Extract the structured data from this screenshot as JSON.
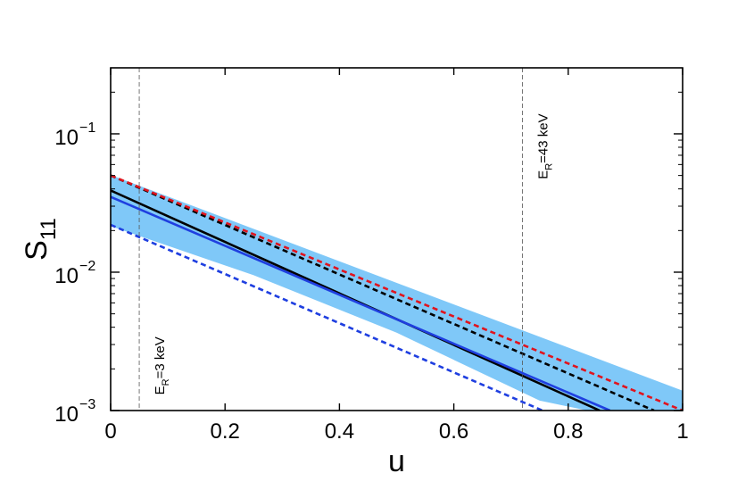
{
  "chart_data": {
    "type": "line",
    "xlabel": "u",
    "ylabel_main": "S",
    "ylabel_sub": "11",
    "xlim": [
      0,
      1
    ],
    "ylim": [
      0.001,
      0.3
    ],
    "yscale": "log",
    "x_ticks": [
      {
        "value": 0,
        "label": "0"
      },
      {
        "value": 0.2,
        "label": "0.2"
      },
      {
        "value": 0.4,
        "label": "0.4"
      },
      {
        "value": 0.6,
        "label": "0.6"
      },
      {
        "value": 0.8,
        "label": "0.8"
      },
      {
        "value": 1,
        "label": "1"
      }
    ],
    "y_ticks": [
      {
        "value": 0.001,
        "base": "10",
        "exp": "−3"
      },
      {
        "value": 0.01,
        "base": "10",
        "exp": "−2"
      },
      {
        "value": 0.1,
        "base": "10",
        "exp": "−1"
      }
    ],
    "band": {
      "color": "#7fc8f8",
      "upper": {
        "x": [
          0,
          1
        ],
        "y": [
          0.0505,
          0.00139
        ]
      },
      "lower": {
        "x": [
          0,
          0.25,
          0.5,
          0.75,
          1
        ],
        "y": [
          0.0215,
          0.0095,
          0.00365,
          0.00118,
          0.00072
        ]
      }
    },
    "series": [
      {
        "color": "#000000",
        "dash": "solid",
        "x": [
          0,
          0.855
        ],
        "y": [
          0.039,
          0.001
        ]
      },
      {
        "color": "#1f3fe0",
        "dash": "solid",
        "x": [
          0,
          0.873
        ],
        "y": [
          0.035,
          0.001
        ]
      },
      {
        "color": "#000000",
        "dash": "dashed",
        "x": [
          0,
          0.95
        ],
        "y": [
          0.05,
          0.001
        ]
      },
      {
        "color": "#e0141e",
        "dash": "dashed",
        "x": [
          0,
          1
        ],
        "y": [
          0.05,
          0.001
        ]
      },
      {
        "color": "#1f3fe0",
        "dash": "dashed",
        "x": [
          0,
          0.755
        ],
        "y": [
          0.022,
          0.001
        ]
      }
    ],
    "vlines": [
      {
        "x": 0.05,
        "label_main": "E",
        "label_sub": "R",
        "label_rest": "=3 keV",
        "label_y": 0.0013
      },
      {
        "x": 0.72,
        "label_main": "E",
        "label_sub": "R",
        "label_rest": "=43 keV",
        "label_y": 0.047
      }
    ],
    "grid": false
  }
}
